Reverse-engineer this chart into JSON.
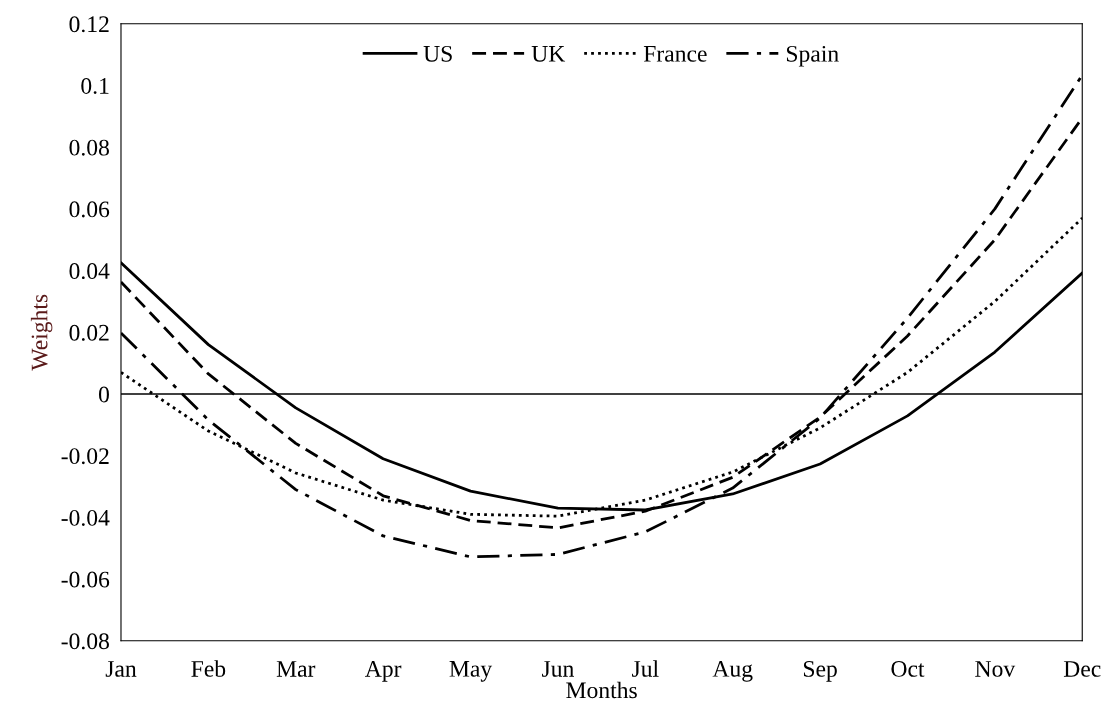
{
  "chart_data": {
    "type": "line",
    "xlabel": "Months",
    "ylabel": "Weights",
    "categories": [
      "Jan",
      "Feb",
      "Mar",
      "Apr",
      "May",
      "Jun",
      "Jul",
      "Aug",
      "Sep",
      "Oct",
      "Nov",
      "Dec"
    ],
    "series": [
      {
        "name": "US",
        "color": "#000000",
        "line_style": "solid",
        "values": [
          0.0425,
          0.016,
          -0.0045,
          -0.021,
          -0.0315,
          -0.037,
          -0.0376,
          -0.0324,
          -0.0227,
          -0.0071,
          0.0136,
          0.0392
        ]
      },
      {
        "name": "UK",
        "color": "#000000",
        "line_style": "dashed",
        "values": [
          0.0363,
          0.0065,
          -0.016,
          -0.033,
          -0.041,
          -0.0434,
          -0.038,
          -0.027,
          -0.0075,
          0.0188,
          0.05,
          0.0895
        ]
      },
      {
        "name": "France",
        "color": "#000000",
        "line_style": "dotted",
        "values": [
          0.007,
          -0.012,
          -0.0256,
          -0.0344,
          -0.039,
          -0.0396,
          -0.0344,
          -0.0253,
          -0.011,
          0.007,
          0.03,
          0.057
        ]
      },
      {
        "name": "Spain",
        "color": "#000000",
        "line_style": "dashdot",
        "values": [
          0.0198,
          -0.0084,
          -0.031,
          -0.046,
          -0.0528,
          -0.052,
          -0.0447,
          -0.0305,
          -0.0078,
          0.0246,
          0.06,
          0.1034
        ]
      }
    ],
    "ylim": [
      -0.08,
      0.12
    ],
    "yticks": [
      -0.08,
      -0.06,
      -0.04,
      -0.02,
      0,
      0.02,
      0.04,
      0.06,
      0.08,
      0.1,
      0.12
    ],
    "ref_lines": [
      {
        "axis": "y",
        "value": 0,
        "color": "#000000"
      }
    ],
    "grid": false,
    "legend": "top",
    "marker": "none"
  }
}
